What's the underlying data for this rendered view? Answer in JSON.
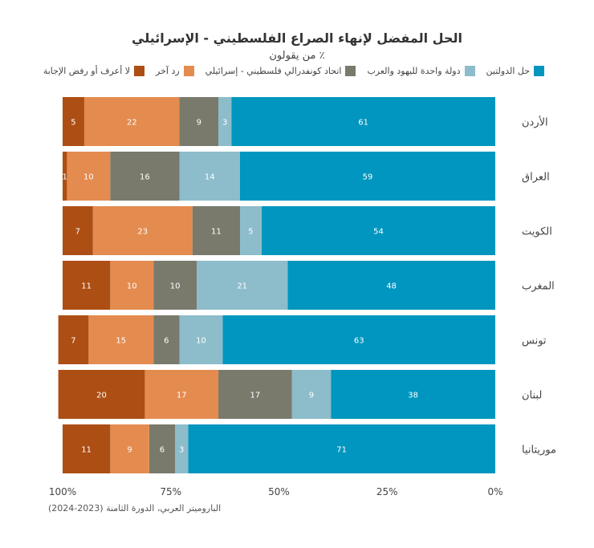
{
  "chart_data": {
    "type": "bar",
    "orientation": "horizontal-stacked",
    "title": "الحل المفضل لإنهاء الصراع الفلسطيني - الإسرائيلي",
    "subtitle": "٪ من يقولون",
    "categories": [
      "الأردن",
      "العراق",
      "الكويت",
      "المغرب",
      "تونس",
      "لبنان",
      "موريتانيا"
    ],
    "series": [
      {
        "name": "حل الدولتين",
        "color": "#0096bf",
        "values": [
          61,
          59,
          54,
          48,
          63,
          38,
          71
        ]
      },
      {
        "name": "دولة واحدة لليهود والعرب",
        "color": "#8dbccb",
        "values": [
          3,
          14,
          5,
          21,
          10,
          9,
          3
        ]
      },
      {
        "name": "اتحاد كونفدرالي فلسطيني - إسرائيلي",
        "color": "#797a6c",
        "values": [
          9,
          16,
          11,
          10,
          6,
          17,
          6
        ]
      },
      {
        "name": "رد آخر",
        "color": "#e48b4f",
        "values": [
          22,
          10,
          23,
          10,
          15,
          17,
          9
        ]
      },
      {
        "name": "لا أعرف أو رفض الإجابة",
        "color": "#ad4e14",
        "values": [
          5,
          1,
          7,
          11,
          7,
          20,
          11
        ]
      }
    ],
    "x_ticks": [
      "100%",
      "75%",
      "50%",
      "25%",
      "0%"
    ],
    "xlim": [
      0,
      100
    ],
    "x_reversed": true,
    "grid": false,
    "legend_position": "top-right"
  },
  "source": "الباروميتر العربي، الدورة الثامنة (2023-2024)"
}
